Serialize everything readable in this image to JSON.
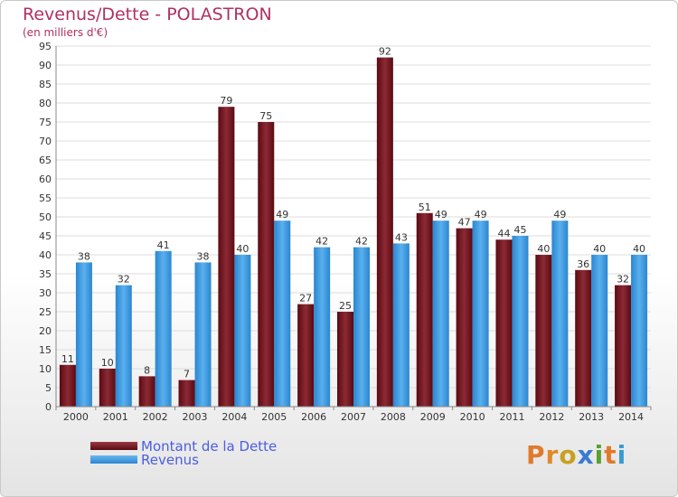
{
  "title": "Revenus/Dette - POLASTRON",
  "subtitle": "(en milliers d'€)",
  "colors": {
    "debt": "#7a1c26",
    "revenue": "#3d9be0",
    "title": "#b03060",
    "legend_text": "#4a5ee0"
  },
  "legend": [
    {
      "label": "Montant de la Dette"
    },
    {
      "label": "Revenus"
    }
  ],
  "logo": {
    "text": "Proxiti"
  },
  "chart_data": {
    "type": "bar",
    "title": "Revenus/Dette - POLASTRON",
    "subtitle": "(en milliers d'€)",
    "categories": [
      "2000",
      "2001",
      "2002",
      "2003",
      "2004",
      "2005",
      "2006",
      "2007",
      "2008",
      "2009",
      "2010",
      "2011",
      "2012",
      "2013",
      "2014"
    ],
    "series": [
      {
        "name": "Montant de la Dette",
        "values": [
          11,
          10,
          8,
          7,
          79,
          75,
          27,
          25,
          92,
          51,
          47,
          44,
          40,
          36,
          32
        ]
      },
      {
        "name": "Revenus",
        "values": [
          38,
          32,
          41,
          38,
          40,
          49,
          42,
          42,
          43,
          49,
          49,
          45,
          49,
          40,
          40
        ]
      }
    ],
    "ylim": [
      0,
      95
    ],
    "yticks": [
      0,
      5,
      10,
      15,
      20,
      25,
      30,
      35,
      40,
      45,
      50,
      55,
      60,
      65,
      70,
      75,
      80,
      85,
      90,
      95
    ],
    "grid": true,
    "legend_position": "bottom-left"
  }
}
